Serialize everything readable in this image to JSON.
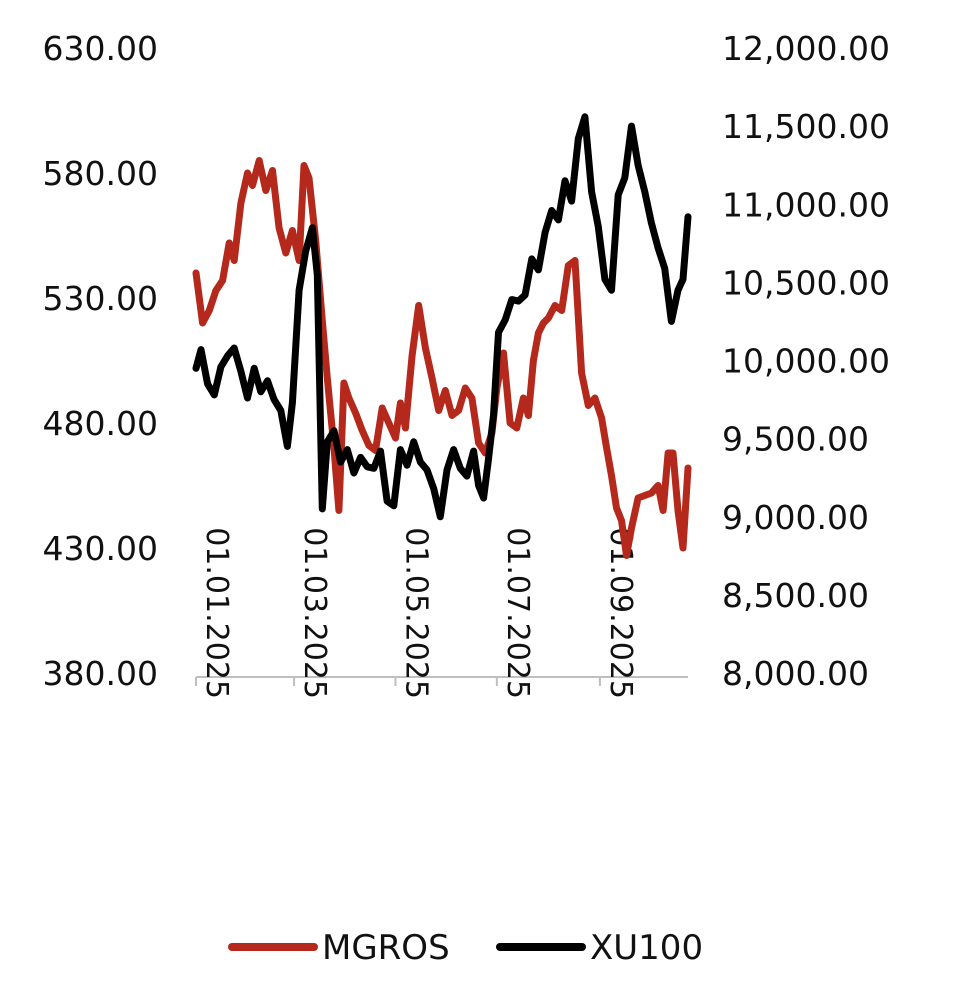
{
  "chart_data": {
    "type": "line",
    "x_axis": {
      "ticks": [
        "01.01.2025",
        "01.03.2025",
        "01.05.2025",
        "01.07.2025",
        "01.09.2025"
      ],
      "range": [
        "2025-01-01",
        "2025-10-24"
      ]
    },
    "y_left": {
      "ticks": [
        "630.00",
        "580.00",
        "530.00",
        "480.00",
        "430.00",
        "380.00"
      ],
      "range": [
        380,
        630
      ]
    },
    "y_right": {
      "ticks": [
        "12,000.00",
        "11,500.00",
        "11,000.00",
        "10,500.00",
        "10,000.00",
        "9,500.00",
        "9,000.00",
        "8,500.00",
        "8,000.00"
      ],
      "range": [
        8000,
        12000
      ]
    },
    "legend_position": "bottom",
    "grid": false,
    "series": [
      {
        "name": "MGROS",
        "axis": "left",
        "color": "#b5281c",
        "points": [
          [
            "2025-01-01",
            540
          ],
          [
            "2025-01-05",
            520
          ],
          [
            "2025-01-09",
            525
          ],
          [
            "2025-01-13",
            533
          ],
          [
            "2025-01-17",
            537
          ],
          [
            "2025-01-21",
            552
          ],
          [
            "2025-01-24",
            545
          ],
          [
            "2025-01-28",
            568
          ],
          [
            "2025-02-01",
            580
          ],
          [
            "2025-02-04",
            575
          ],
          [
            "2025-02-08",
            585
          ],
          [
            "2025-02-12",
            573
          ],
          [
            "2025-02-16",
            581
          ],
          [
            "2025-02-20",
            558
          ],
          [
            "2025-02-24",
            548
          ],
          [
            "2025-02-28",
            557
          ],
          [
            "2025-03-04",
            545
          ],
          [
            "2025-03-07",
            583
          ],
          [
            "2025-03-10",
            578
          ],
          [
            "2025-03-14",
            553
          ],
          [
            "2025-03-18",
            521
          ],
          [
            "2025-03-21",
            498
          ],
          [
            "2025-03-25",
            470
          ],
          [
            "2025-03-28",
            445
          ],
          [
            "2025-03-31",
            496
          ],
          [
            "2025-04-03",
            490
          ],
          [
            "2025-04-07",
            484
          ],
          [
            "2025-04-11",
            477
          ],
          [
            "2025-04-15",
            471
          ],
          [
            "2025-04-19",
            469
          ],
          [
            "2025-04-23",
            486
          ],
          [
            "2025-04-27",
            480
          ],
          [
            "2025-05-01",
            474
          ],
          [
            "2025-05-04",
            488
          ],
          [
            "2025-05-07",
            478
          ],
          [
            "2025-05-11",
            507
          ],
          [
            "2025-05-15",
            527
          ],
          [
            "2025-05-19",
            510
          ],
          [
            "2025-05-23",
            498
          ],
          [
            "2025-05-27",
            485
          ],
          [
            "2025-05-31",
            493
          ],
          [
            "2025-06-04",
            483
          ],
          [
            "2025-06-08",
            485
          ],
          [
            "2025-06-12",
            494
          ],
          [
            "2025-06-16",
            490
          ],
          [
            "2025-06-20",
            472
          ],
          [
            "2025-06-24",
            468
          ],
          [
            "2025-06-28",
            476
          ],
          [
            "2025-07-01",
            494
          ],
          [
            "2025-07-05",
            508
          ],
          [
            "2025-07-09",
            480
          ],
          [
            "2025-07-13",
            478
          ],
          [
            "2025-07-17",
            490
          ],
          [
            "2025-07-20",
            483
          ],
          [
            "2025-07-23",
            505
          ],
          [
            "2025-07-26",
            516
          ],
          [
            "2025-07-29",
            520
          ],
          [
            "2025-08-01",
            522
          ],
          [
            "2025-08-05",
            527
          ],
          [
            "2025-08-09",
            525
          ],
          [
            "2025-08-13",
            543
          ],
          [
            "2025-08-17",
            545
          ],
          [
            "2025-08-21",
            500
          ],
          [
            "2025-08-25",
            487
          ],
          [
            "2025-08-29",
            490
          ],
          [
            "2025-09-02",
            482
          ],
          [
            "2025-09-05",
            470
          ],
          [
            "2025-09-08",
            459
          ],
          [
            "2025-09-11",
            446
          ],
          [
            "2025-09-14",
            441
          ],
          [
            "2025-09-17",
            427
          ],
          [
            "2025-09-20",
            438
          ],
          [
            "2025-09-24",
            450
          ],
          [
            "2025-09-28",
            451
          ],
          [
            "2025-10-02",
            452
          ],
          [
            "2025-10-06",
            455
          ],
          [
            "2025-10-09",
            445
          ],
          [
            "2025-10-12",
            468
          ],
          [
            "2025-10-15",
            468
          ],
          [
            "2025-10-18",
            445
          ],
          [
            "2025-10-21",
            430
          ],
          [
            "2025-10-24",
            462
          ]
        ]
      },
      {
        "name": "XU100",
        "axis": "right",
        "color": "#000000",
        "points": [
          [
            "2025-01-01",
            9950
          ],
          [
            "2025-01-04",
            10070
          ],
          [
            "2025-01-08",
            9850
          ],
          [
            "2025-01-12",
            9780
          ],
          [
            "2025-01-16",
            9960
          ],
          [
            "2025-01-20",
            10030
          ],
          [
            "2025-01-24",
            10080
          ],
          [
            "2025-01-28",
            9930
          ],
          [
            "2025-02-01",
            9760
          ],
          [
            "2025-02-05",
            9950
          ],
          [
            "2025-02-09",
            9800
          ],
          [
            "2025-02-13",
            9870
          ],
          [
            "2025-02-17",
            9750
          ],
          [
            "2025-02-21",
            9680
          ],
          [
            "2025-02-25",
            9450
          ],
          [
            "2025-02-28",
            9730
          ],
          [
            "2025-03-04",
            10450
          ],
          [
            "2025-03-08",
            10700
          ],
          [
            "2025-03-12",
            10850
          ],
          [
            "2025-03-15",
            10550
          ],
          [
            "2025-03-18",
            9050
          ],
          [
            "2025-03-21",
            9480
          ],
          [
            "2025-03-25",
            9550
          ],
          [
            "2025-03-29",
            9350
          ],
          [
            "2025-04-02",
            9430
          ],
          [
            "2025-04-06",
            9280
          ],
          [
            "2025-04-10",
            9380
          ],
          [
            "2025-04-14",
            9320
          ],
          [
            "2025-04-18",
            9310
          ],
          [
            "2025-04-22",
            9420
          ],
          [
            "2025-04-26",
            9100
          ],
          [
            "2025-04-30",
            9070
          ],
          [
            "2025-05-04",
            9430
          ],
          [
            "2025-05-08",
            9330
          ],
          [
            "2025-05-12",
            9480
          ],
          [
            "2025-05-16",
            9350
          ],
          [
            "2025-05-20",
            9300
          ],
          [
            "2025-05-24",
            9180
          ],
          [
            "2025-05-28",
            9000
          ],
          [
            "2025-06-01",
            9300
          ],
          [
            "2025-06-05",
            9430
          ],
          [
            "2025-06-09",
            9310
          ],
          [
            "2025-06-13",
            9260
          ],
          [
            "2025-06-17",
            9420
          ],
          [
            "2025-06-20",
            9200
          ],
          [
            "2025-06-23",
            9120
          ],
          [
            "2025-06-26",
            9370
          ],
          [
            "2025-06-29",
            9650
          ],
          [
            "2025-07-02",
            10180
          ],
          [
            "2025-07-06",
            10260
          ],
          [
            "2025-07-10",
            10390
          ],
          [
            "2025-07-14",
            10380
          ],
          [
            "2025-07-18",
            10420
          ],
          [
            "2025-07-22",
            10650
          ],
          [
            "2025-07-26",
            10580
          ],
          [
            "2025-07-30",
            10820
          ],
          [
            "2025-08-03",
            10960
          ],
          [
            "2025-08-07",
            10900
          ],
          [
            "2025-08-11",
            11150
          ],
          [
            "2025-08-15",
            11020
          ],
          [
            "2025-08-19",
            11420
          ],
          [
            "2025-08-23",
            11560
          ],
          [
            "2025-08-27",
            11080
          ],
          [
            "2025-08-31",
            10860
          ],
          [
            "2025-09-04",
            10520
          ],
          [
            "2025-09-08",
            10450
          ],
          [
            "2025-09-12",
            11060
          ],
          [
            "2025-09-16",
            11170
          ],
          [
            "2025-09-20",
            11500
          ],
          [
            "2025-09-24",
            11250
          ],
          [
            "2025-09-28",
            11080
          ],
          [
            "2025-10-02",
            10880
          ],
          [
            "2025-10-06",
            10720
          ],
          [
            "2025-10-10",
            10590
          ],
          [
            "2025-10-14",
            10250
          ],
          [
            "2025-10-18",
            10450
          ],
          [
            "2025-10-21",
            10520
          ],
          [
            "2025-10-24",
            10920
          ]
        ]
      }
    ]
  }
}
